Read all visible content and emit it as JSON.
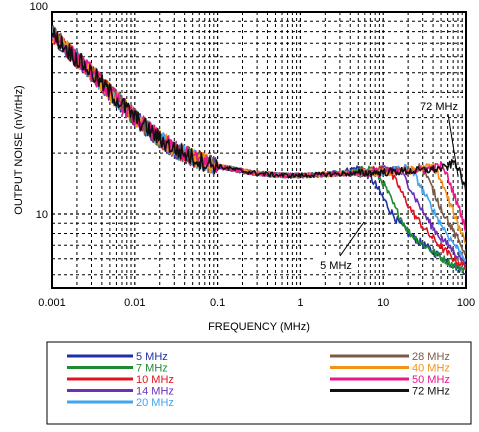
{
  "chart_data": {
    "type": "line",
    "title": "",
    "xlabel": "FREQUENCY (MHz)",
    "ylabel": "OUTPUT NOISE (nV/rtHz)",
    "xscale": "log",
    "yscale": "log",
    "xlim": [
      0.001,
      100
    ],
    "ylim": [
      4.3,
      100
    ],
    "grid": true,
    "grid_style": "dashed",
    "x_ticks": [
      {
        "value": 0.001,
        "label": "0.001"
      },
      {
        "value": 0.01,
        "label": "0.01"
      },
      {
        "value": 0.1,
        "label": "0.1"
      },
      {
        "value": 1,
        "label": "1"
      },
      {
        "value": 10,
        "label": "10"
      },
      {
        "value": 100,
        "label": "100"
      }
    ],
    "y_ticks": [
      {
        "value": 10,
        "label": "10"
      },
      {
        "value": 100,
        "label": "100"
      }
    ],
    "annotations": [
      {
        "text": "72 MHz",
        "x": 80,
        "y": 28
      },
      {
        "text": "5 MHz",
        "x": 2.3,
        "y": 7.1
      }
    ],
    "legend_position": "below-chart",
    "series": [
      {
        "name": "5 MHz",
        "color": "#1f2fa8",
        "x": [
          0.001,
          0.0013,
          0.0018,
          0.0025,
          0.0035,
          0.005,
          0.007,
          0.01,
          0.015,
          0.02,
          0.03,
          0.05,
          0.07,
          0.1,
          0.15,
          0.2,
          0.3,
          0.5,
          0.7,
          1,
          1.5,
          2,
          3,
          4,
          5,
          6,
          7,
          8,
          10,
          12,
          15,
          20,
          30,
          40,
          50,
          60,
          70,
          80,
          90,
          100
        ],
        "y": [
          78,
          70,
          61,
          54,
          47,
          40,
          35,
          30,
          26,
          23.5,
          21,
          19,
          18,
          17.2,
          16.7,
          16.3,
          15.9,
          15.6,
          15.5,
          15.5,
          15.6,
          15.8,
          16.2,
          16.6,
          17,
          16.2,
          15.2,
          14,
          12,
          10.5,
          9.2,
          8,
          7.1,
          6.5,
          6.1,
          5.8,
          5.6,
          5.4,
          5.3,
          5.2
        ]
      },
      {
        "name": "7 MHz",
        "color": "#1e8b34",
        "x": [
          0.001,
          0.0013,
          0.0018,
          0.0025,
          0.0035,
          0.005,
          0.007,
          0.01,
          0.015,
          0.02,
          0.03,
          0.05,
          0.07,
          0.1,
          0.15,
          0.2,
          0.3,
          0.5,
          0.7,
          1,
          1.5,
          2,
          3,
          5,
          7,
          8,
          10,
          12,
          14,
          17,
          20,
          30,
          40,
          50,
          60,
          70,
          80,
          90,
          100
        ],
        "y": [
          78,
          70,
          61,
          54,
          47,
          40,
          35,
          30,
          26,
          23.5,
          21,
          19,
          18,
          17.2,
          16.7,
          16.3,
          15.9,
          15.6,
          15.5,
          15.5,
          15.6,
          15.7,
          15.9,
          16.3,
          16.8,
          16.2,
          14.2,
          12.2,
          10.6,
          9.3,
          8.2,
          7.1,
          6.5,
          6.1,
          5.8,
          5.6,
          5.5,
          5.4,
          5.3
        ]
      },
      {
        "name": "10 MHz",
        "color": "#e0141e",
        "x": [
          0.001,
          0.0013,
          0.0018,
          0.0025,
          0.0035,
          0.005,
          0.007,
          0.01,
          0.015,
          0.02,
          0.03,
          0.05,
          0.07,
          0.1,
          0.15,
          0.2,
          0.3,
          0.5,
          0.7,
          1,
          1.5,
          2,
          3,
          5,
          7,
          10,
          12,
          15,
          18,
          22,
          27,
          35,
          45,
          55,
          65,
          75,
          85,
          100
        ],
        "y": [
          78,
          70,
          61,
          54,
          47,
          40,
          35,
          30,
          26,
          23.5,
          21,
          19,
          18,
          17.2,
          16.7,
          16.3,
          15.9,
          15.6,
          15.5,
          15.5,
          15.6,
          15.7,
          15.8,
          16,
          16.3,
          16.9,
          16,
          14,
          12,
          10.4,
          9.2,
          8,
          7.2,
          6.6,
          6.2,
          5.9,
          5.7,
          5.5
        ]
      },
      {
        "name": "14 MHz",
        "color": "#6b2fb8",
        "x": [
          0.001,
          0.0013,
          0.0018,
          0.0025,
          0.0035,
          0.005,
          0.007,
          0.01,
          0.015,
          0.02,
          0.03,
          0.05,
          0.07,
          0.1,
          0.15,
          0.2,
          0.3,
          0.5,
          0.7,
          1,
          1.5,
          2,
          3,
          5,
          7,
          10,
          14,
          17,
          21,
          25,
          30,
          36,
          45,
          55,
          65,
          75,
          85,
          100
        ],
        "y": [
          78,
          70,
          61,
          54,
          47,
          40,
          35,
          30,
          26,
          23.5,
          21,
          19,
          18,
          17.2,
          16.7,
          16.3,
          15.9,
          15.6,
          15.5,
          15.5,
          15.6,
          15.7,
          15.8,
          15.9,
          16.1,
          16.5,
          17,
          15.8,
          13.6,
          11.8,
          10.3,
          9.1,
          8,
          7.3,
          6.8,
          6.4,
          6.1,
          5.8
        ]
      },
      {
        "name": "20 MHz",
        "color": "#42a5ef",
        "x": [
          0.001,
          0.0013,
          0.0018,
          0.0025,
          0.0035,
          0.005,
          0.007,
          0.01,
          0.015,
          0.02,
          0.03,
          0.05,
          0.07,
          0.1,
          0.15,
          0.2,
          0.3,
          0.5,
          0.7,
          1,
          1.5,
          2,
          3,
          5,
          7,
          10,
          14,
          20,
          24,
          29,
          35,
          42,
          50,
          60,
          70,
          80,
          90,
          100
        ],
        "y": [
          78,
          70,
          61,
          54,
          47,
          40,
          35,
          30,
          26,
          23.5,
          21,
          19,
          18,
          17.2,
          16.7,
          16.3,
          15.9,
          15.6,
          15.5,
          15.5,
          15.6,
          15.7,
          15.8,
          15.9,
          16,
          16.2,
          16.6,
          17,
          15.6,
          13.4,
          11.6,
          10.1,
          8.9,
          7.9,
          7.2,
          6.7,
          6.3,
          6
        ]
      },
      {
        "name": "28 MHz",
        "color": "#7a5a4a",
        "x": [
          0.001,
          0.0013,
          0.0018,
          0.0025,
          0.0035,
          0.005,
          0.007,
          0.01,
          0.015,
          0.02,
          0.03,
          0.05,
          0.07,
          0.1,
          0.15,
          0.2,
          0.3,
          0.5,
          0.7,
          1,
          1.5,
          2,
          3,
          5,
          7,
          10,
          14,
          20,
          28,
          33,
          39,
          46,
          55,
          65,
          75,
          85,
          100
        ],
        "y": [
          78,
          70,
          61,
          54,
          47,
          40,
          35,
          30,
          26,
          23.5,
          21,
          19,
          18,
          17.2,
          16.7,
          16.3,
          15.9,
          15.6,
          15.5,
          15.5,
          15.6,
          15.7,
          15.8,
          15.9,
          16,
          16.1,
          16.3,
          16.6,
          17.1,
          15.6,
          13.4,
          11.5,
          9.9,
          8.7,
          7.8,
          7.1,
          6.4
        ]
      },
      {
        "name": "40 MHz",
        "color": "#f29318",
        "x": [
          0.001,
          0.0013,
          0.0018,
          0.0025,
          0.0035,
          0.005,
          0.007,
          0.01,
          0.015,
          0.02,
          0.03,
          0.05,
          0.07,
          0.1,
          0.15,
          0.2,
          0.3,
          0.5,
          0.7,
          1,
          1.5,
          2,
          3,
          5,
          7,
          10,
          14,
          20,
          28,
          40,
          46,
          53,
          61,
          70,
          80,
          90,
          100
        ],
        "y": [
          78,
          70,
          61,
          54,
          47,
          40,
          35,
          30,
          26,
          23.5,
          21,
          19,
          18,
          17.2,
          16.7,
          16.3,
          15.9,
          15.6,
          15.5,
          15.5,
          15.6,
          15.7,
          15.8,
          15.9,
          16,
          16.1,
          16.2,
          16.4,
          16.7,
          17.3,
          15.8,
          13.7,
          11.8,
          10.2,
          8.9,
          8,
          7.2
        ]
      },
      {
        "name": "50 MHz",
        "color": "#e8178a",
        "x": [
          0.001,
          0.0013,
          0.0018,
          0.0025,
          0.0035,
          0.005,
          0.007,
          0.01,
          0.015,
          0.02,
          0.03,
          0.05,
          0.07,
          0.1,
          0.15,
          0.2,
          0.3,
          0.5,
          0.7,
          1,
          1.5,
          2,
          3,
          5,
          7,
          10,
          14,
          20,
          28,
          40,
          50,
          57,
          65,
          73,
          82,
          91,
          100
        ],
        "y": [
          78,
          70,
          61,
          54,
          47,
          40,
          35,
          30,
          26,
          23.5,
          21,
          19,
          18,
          17.2,
          16.7,
          16.3,
          15.9,
          15.6,
          15.5,
          15.5,
          15.6,
          15.7,
          15.8,
          15.9,
          16,
          16.1,
          16.2,
          16.3,
          16.5,
          16.9,
          17.4,
          16,
          14,
          12.2,
          10.7,
          9.5,
          8.4
        ]
      },
      {
        "name": "72 MHz",
        "color": "#111111",
        "x": [
          0.001,
          0.0013,
          0.0018,
          0.0025,
          0.0035,
          0.005,
          0.007,
          0.01,
          0.015,
          0.02,
          0.03,
          0.05,
          0.07,
          0.1,
          0.15,
          0.2,
          0.3,
          0.5,
          0.7,
          1,
          1.5,
          2,
          3,
          5,
          7,
          10,
          14,
          20,
          28,
          40,
          55,
          65,
          72,
          80,
          88,
          95,
          100
        ],
        "y": [
          78,
          70,
          61,
          54,
          47,
          40,
          35,
          30,
          26,
          23.5,
          21,
          19,
          18,
          17.2,
          16.7,
          16.3,
          15.9,
          15.6,
          15.5,
          15.5,
          15.6,
          15.7,
          15.8,
          15.9,
          16,
          16.1,
          16.2,
          16.3,
          16.4,
          16.6,
          16.9,
          17.5,
          18.2,
          17,
          15.2,
          13.8,
          12.8
        ]
      }
    ]
  }
}
